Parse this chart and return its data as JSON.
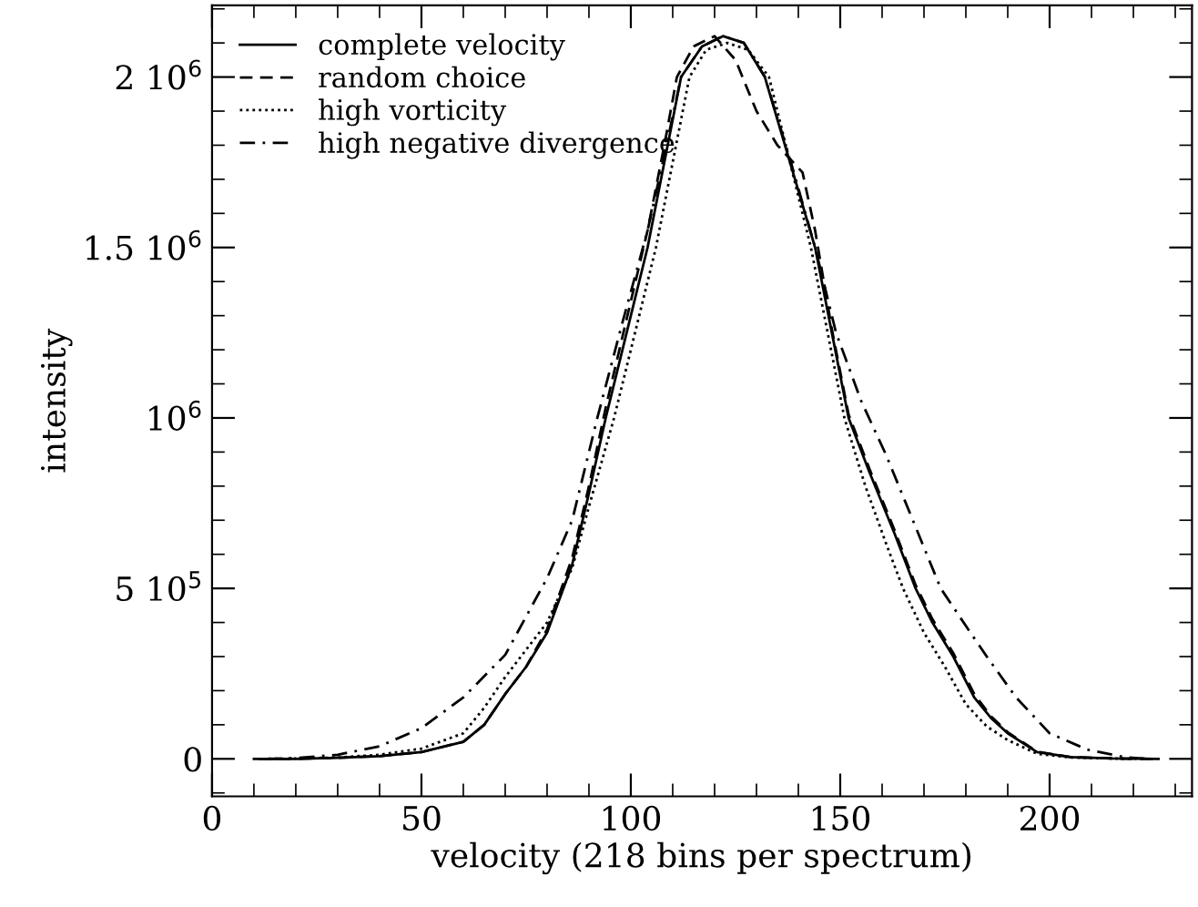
{
  "chart_data": {
    "type": "line",
    "xlabel": "velocity (218 bins per spectrum)",
    "ylabel": "intensity",
    "xlim": [
      0,
      234
    ],
    "ylim": [
      -110000,
      2210000
    ],
    "xticks": [
      0,
      50,
      100,
      150,
      200
    ],
    "yticks": [
      0,
      {
        "value": 500000,
        "label": "5 10$^{5}$"
      },
      {
        "value": 1000000,
        "label": "10$^{6}$"
      },
      {
        "value": 1500000,
        "label": "1.5 10$^{6}$"
      },
      {
        "value": 2000000,
        "label": "2 10$^{6}$"
      }
    ],
    "grid": false,
    "legend": "top left",
    "marker": "none",
    "series": [
      {
        "name": "complete velocity",
        "color": "#000000",
        "line_style": "solid",
        "x": [
          10,
          20,
          30,
          40,
          50,
          60,
          65,
          70,
          75,
          80,
          86,
          90,
          94,
          99,
          104,
          108,
          112,
          117,
          122,
          127,
          132,
          138,
          144,
          148,
          152,
          157,
          163,
          168,
          172,
          177,
          182,
          186,
          190,
          197,
          205,
          215,
          226
        ],
        "values": [
          0,
          0,
          3000,
          8000,
          20000,
          50000,
          100000,
          190000,
          270000,
          370000,
          570000,
          780000,
          1000000,
          1250000,
          1500000,
          1750000,
          2000000,
          2090000,
          2120000,
          2100000,
          2000000,
          1750000,
          1500000,
          1250000,
          1000000,
          840000,
          660000,
          500000,
          400000,
          300000,
          180000,
          120000,
          75000,
          20000,
          5000,
          1000,
          0
        ]
      },
      {
        "name": "random choice",
        "color": "#000000",
        "line_style": "dashed",
        "x": [
          11,
          20,
          30,
          40,
          50,
          60,
          65,
          70,
          75,
          80,
          86,
          90,
          94,
          99,
          104,
          108,
          111,
          115,
          120,
          125,
          130,
          135,
          138,
          141,
          144,
          148,
          152,
          157,
          163,
          168,
          172,
          177,
          182,
          186,
          190,
          197,
          205,
          215,
          225
        ],
        "values": [
          0,
          0,
          3000,
          8000,
          20000,
          50000,
          100000,
          190000,
          270000,
          380000,
          590000,
          800000,
          1030000,
          1290000,
          1550000,
          1800000,
          2000000,
          2090000,
          2120000,
          2050000,
          1900000,
          1800000,
          1760000,
          1720000,
          1550000,
          1260000,
          1010000,
          850000,
          670000,
          510000,
          410000,
          310000,
          190000,
          125000,
          78000,
          21000,
          5000,
          1000,
          0
        ]
      },
      {
        "name": "high vorticity",
        "color": "#000000",
        "line_style": "dotted",
        "x": [
          12,
          20,
          30,
          40,
          50,
          60,
          65,
          70,
          75,
          80,
          86,
          90,
          96,
          101,
          106,
          110,
          114,
          118,
          123,
          128,
          133,
          138,
          143,
          147,
          151,
          156,
          161,
          165,
          170,
          175,
          180,
          185,
          190,
          197,
          205,
          215,
          224
        ],
        "values": [
          0,
          1000,
          4000,
          12000,
          30000,
          75000,
          150000,
          240000,
          320000,
          400000,
          560000,
          740000,
          1000000,
          1250000,
          1500000,
          1750000,
          2000000,
          2080000,
          2100000,
          2080000,
          2000000,
          1750000,
          1500000,
          1250000,
          1000000,
          800000,
          630000,
          500000,
          370000,
          270000,
          160000,
          95000,
          55000,
          15000,
          4000,
          1000,
          0
        ]
      },
      {
        "name": "high negative divergence",
        "color": "#000000",
        "line_style": "dashdot",
        "x": [
          13,
          20,
          30,
          40,
          50,
          60,
          70,
          80,
          86,
          92,
          98,
          104,
          108,
          112,
          117,
          122,
          127,
          132,
          138,
          144,
          149,
          155,
          161,
          168,
          174,
          180,
          185,
          192,
          200,
          209,
          218,
          223
        ],
        "values": [
          0,
          2000,
          12000,
          37000,
          90000,
          180000,
          305000,
          530000,
          700000,
          1000000,
          1280000,
          1550000,
          1770000,
          2000000,
          2090000,
          2120000,
          2100000,
          2000000,
          1760000,
          1500000,
          1250000,
          1050000,
          890000,
          680000,
          500000,
          390000,
          300000,
          180000,
          75000,
          27000,
          5000,
          0
        ]
      }
    ]
  }
}
